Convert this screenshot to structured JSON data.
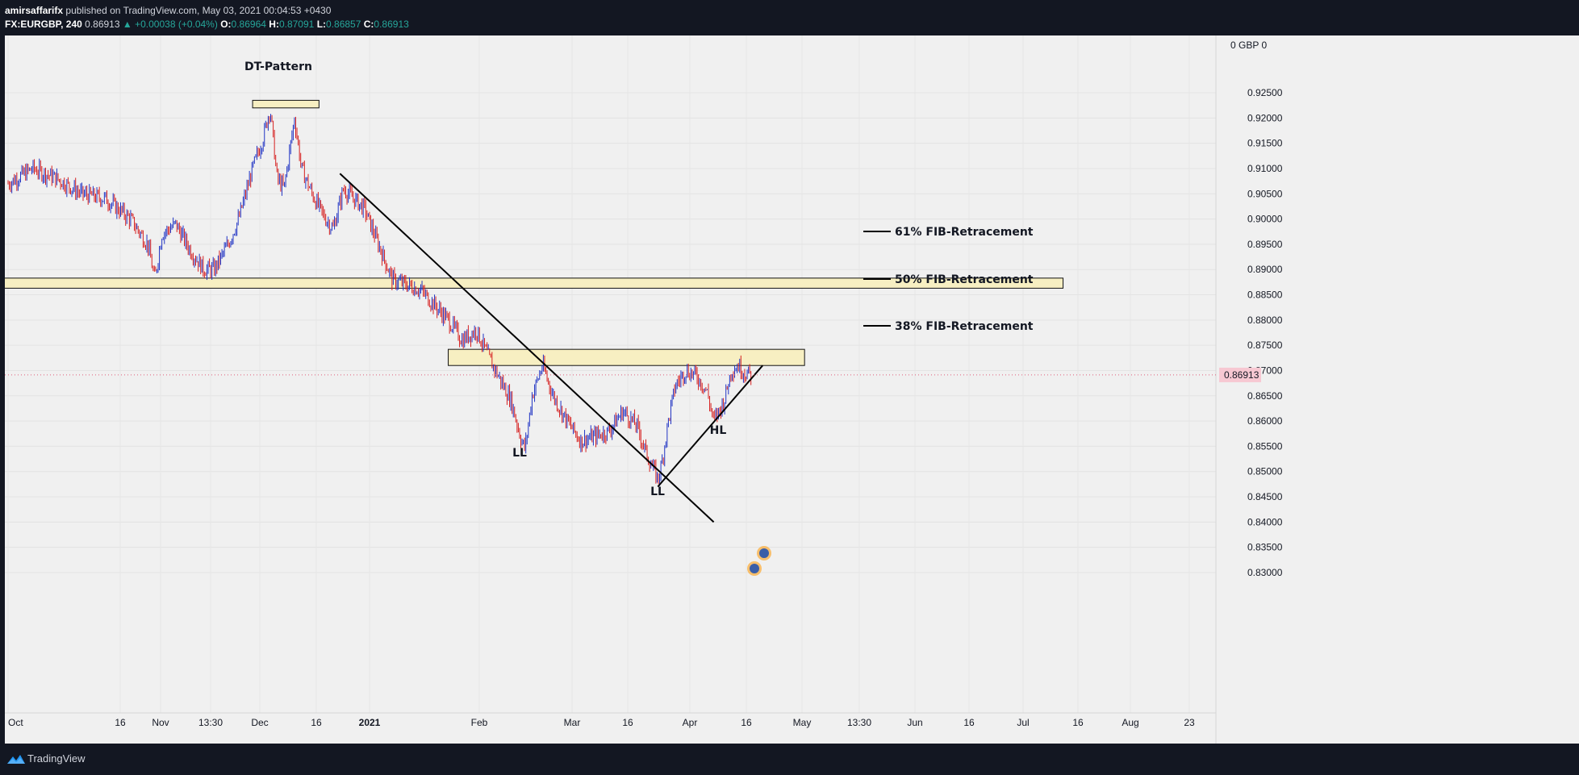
{
  "header": {
    "publisher": "amirsaffarifx",
    "published_text": "published on TradingView.com, May 03, 2021 00:04:53 +0430",
    "symbol": "FX:EURGBP, 240",
    "last": "0.86913",
    "change": "▲ +0.00038 (+0.04%)",
    "o_label": "O:",
    "o_value": "0.86964",
    "h_label": "H:",
    "h_value": "0.87091",
    "l_label": "L:",
    "l_value": "0.86857",
    "c_label": "C:",
    "c_value": "0.86913"
  },
  "footer": {
    "brand": "TradingView",
    "logo_icon": "tradingview-logo-icon"
  },
  "chart_data": {
    "type": "candlestick",
    "symbol": "FX:EURGBP",
    "interval": "240",
    "currency_label": "GBP",
    "y_ticks": [
      "0.92500",
      "0.92000",
      "0.91500",
      "0.91000",
      "0.90500",
      "0.90000",
      "0.89500",
      "0.89000",
      "0.88500",
      "0.88000",
      "0.87500",
      "0.87000",
      "0.86500",
      "0.86000",
      "0.85500",
      "0.85000",
      "0.84500",
      "0.84000",
      "0.83500",
      "0.83000"
    ],
    "x_ticks": [
      "Oct",
      "16",
      "Nov",
      "13:30",
      "Dec",
      "16",
      "2021",
      "Feb",
      "Mar",
      "16",
      "Apr",
      "16",
      "May",
      "13:30",
      "Jun",
      "16",
      "Jul",
      "16",
      "Aug",
      "23"
    ],
    "last_price_label": "0.86913",
    "ylim": [
      0.829,
      0.929
    ],
    "price_path": [
      [
        "2020-10-01",
        0.907
      ],
      [
        "2020-10-08",
        0.91
      ],
      [
        "2020-10-15",
        0.908
      ],
      [
        "2020-10-22",
        0.905
      ],
      [
        "2020-10-29",
        0.904
      ],
      [
        "2020-11-05",
        0.9
      ],
      [
        "2020-11-10",
        0.895
      ],
      [
        "2020-11-12",
        0.888
      ],
      [
        "2020-11-14",
        0.897
      ],
      [
        "2020-11-18",
        0.899
      ],
      [
        "2020-11-22",
        0.894
      ],
      [
        "2020-11-26",
        0.89
      ],
      [
        "2020-11-29",
        0.89
      ],
      [
        "2020-12-03",
        0.895
      ],
      [
        "2020-12-06",
        0.9
      ],
      [
        "2020-12-10",
        0.91
      ],
      [
        "2020-12-13",
        0.916
      ],
      [
        "2020-12-15",
        0.922
      ],
      [
        "2020-12-17",
        0.908
      ],
      [
        "2020-12-19",
        0.906
      ],
      [
        "2020-12-22",
        0.92
      ],
      [
        "2020-12-24",
        0.91
      ],
      [
        "2020-12-27",
        0.905
      ],
      [
        "2020-12-30",
        0.901
      ],
      [
        "2021-01-02",
        0.898
      ],
      [
        "2021-01-05",
        0.906
      ],
      [
        "2021-01-08",
        0.904
      ],
      [
        "2021-01-11",
        0.902
      ],
      [
        "2021-01-15",
        0.895
      ],
      [
        "2021-01-19",
        0.888
      ],
      [
        "2021-01-23",
        0.887
      ],
      [
        "2021-01-27",
        0.886
      ],
      [
        "2021-01-31",
        0.883
      ],
      [
        "2021-02-04",
        0.88
      ],
      [
        "2021-02-08",
        0.876
      ],
      [
        "2021-02-12",
        0.878
      ],
      [
        "2021-02-16",
        0.872
      ],
      [
        "2021-02-19",
        0.868
      ],
      [
        "2021-02-22",
        0.864
      ],
      [
        "2021-02-25",
        0.856
      ],
      [
        "2021-02-26",
        0.8545
      ],
      [
        "2021-02-28",
        0.865
      ],
      [
        "2021-03-03",
        0.871
      ],
      [
        "2021-03-06",
        0.865
      ],
      [
        "2021-03-10",
        0.86
      ],
      [
        "2021-03-14",
        0.856
      ],
      [
        "2021-03-18",
        0.857
      ],
      [
        "2021-03-22",
        0.858
      ],
      [
        "2021-03-26",
        0.862
      ],
      [
        "2021-03-30",
        0.859
      ],
      [
        "2021-04-02",
        0.853
      ],
      [
        "2021-04-05",
        0.8485
      ],
      [
        "2021-04-06",
        0.851
      ],
      [
        "2021-04-08",
        0.86
      ],
      [
        "2021-04-10",
        0.867
      ],
      [
        "2021-04-13",
        0.87
      ],
      [
        "2021-04-16",
        0.869
      ],
      [
        "2021-04-19",
        0.866
      ],
      [
        "2021-04-21",
        0.86
      ],
      [
        "2021-04-24",
        0.864
      ],
      [
        "2021-04-26",
        0.87
      ],
      [
        "2021-04-28",
        0.871
      ],
      [
        "2021-04-30",
        0.8695
      ],
      [
        "2021-05-02",
        0.8691
      ]
    ],
    "annotations": {
      "dt_pattern": "DT-Pattern",
      "ll1": "LL",
      "ll2": "LL",
      "hl": "HL",
      "fib61": "61% FIB-Retracement",
      "fib50": "50% FIB-Retracement",
      "fib38": "38% FIB-Retracement"
    },
    "zones": [
      {
        "name": "dt-zone",
        "low": 0.922,
        "high": 0.9235,
        "from": "2020-12-10",
        "to": "2020-12-29"
      },
      {
        "name": "support-resistance-zone",
        "low": 0.8863,
        "high": 0.8883,
        "from": "2020-10-01",
        "to": "2021-07-30"
      },
      {
        "name": "neckline-zone",
        "low": 0.871,
        "high": 0.8742,
        "from": "2021-02-04",
        "to": "2021-05-17"
      }
    ],
    "trendlines": [
      {
        "name": "descending-trendline",
        "from": [
          "2021-01-04",
          0.909
        ],
        "to": [
          "2021-04-21",
          0.84
        ]
      },
      {
        "name": "ascending-trendline",
        "from": [
          "2021-04-05",
          0.847
        ],
        "to": [
          "2021-05-05",
          0.871
        ]
      }
    ],
    "up_color": "#2134c4",
    "down_color": "#d62020",
    "zone_fill": "#f7efc2"
  }
}
